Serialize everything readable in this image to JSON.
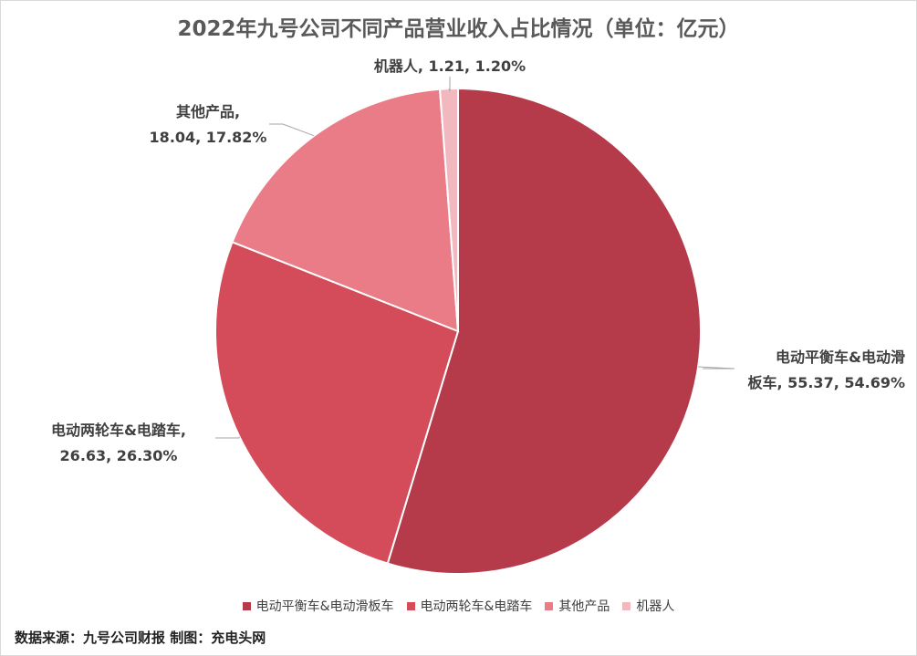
{
  "title": "2022年九号公司不同产品营业收入占比情况（单位：亿元）",
  "chart_data": {
    "type": "pie",
    "unit": "亿元",
    "slices": [
      {
        "name": "电动平衡车&电动滑板车",
        "value": 55.37,
        "percent": "54.69%",
        "color": "#b53a4a",
        "label_lines": [
          "电动平衡车&电动滑",
          "板车, 55.37, 54.69%"
        ]
      },
      {
        "name": "电动两轮车&电踏车",
        "value": 26.63,
        "percent": "26.30%",
        "color": "#d44b5a",
        "label_lines": [
          "电动两轮车&电踏车,",
          "26.63, 26.30%"
        ]
      },
      {
        "name": "其他产品",
        "value": 18.04,
        "percent": "17.82%",
        "color": "#e97c86",
        "label_lines": [
          "其他产品,",
          "18.04, 17.82%"
        ]
      },
      {
        "name": "机器人",
        "value": 1.21,
        "percent": "1.20%",
        "color": "#f2b8bf",
        "label_lines": [
          "机器人, 1.21, 1.20%"
        ]
      }
    ],
    "legend_position": "bottom"
  },
  "source_note": "数据来源：九号公司财报  制图：充电头网"
}
